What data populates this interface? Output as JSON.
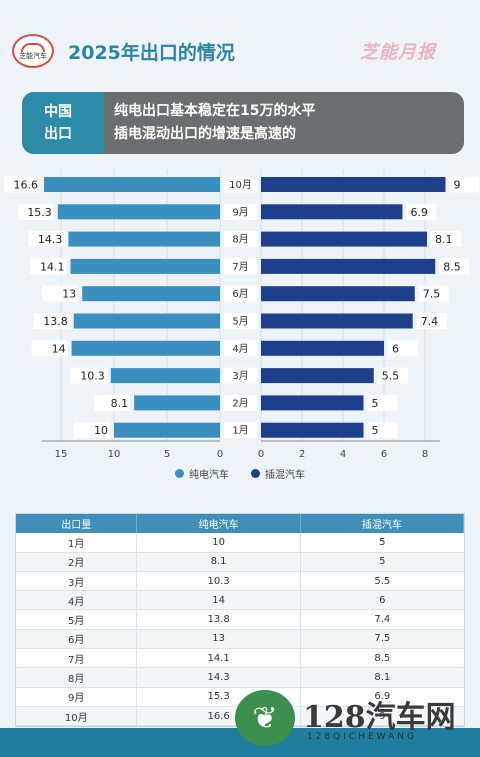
{
  "header": {
    "logo_text": "芝能汽车",
    "title": "2025年出口的情况",
    "brand": "芝能月报"
  },
  "banner": {
    "tag_line1": "中国",
    "tag_line2": "出口",
    "line1": "纯电出口基本稳定在15万的水平",
    "line2": "插电混动出口的增速是高速的"
  },
  "colors": {
    "bev": "#3a8fc0",
    "phev": "#1e3f8c",
    "accent": "#2c8ba8"
  },
  "chart_data": {
    "type": "bar",
    "orientation": "horizontal-butterfly",
    "categories": [
      "1月",
      "2月",
      "3月",
      "4月",
      "5月",
      "6月",
      "7月",
      "8月",
      "9月",
      "10月"
    ],
    "series": [
      {
        "name": "纯电汽车",
        "values": [
          10,
          8.1,
          10.3,
          14,
          13.8,
          13,
          14.1,
          14.3,
          15.3,
          16.6
        ],
        "xlim": [
          0,
          17
        ]
      },
      {
        "name": "插混汽车",
        "values": [
          5,
          5,
          5.5,
          6,
          7.4,
          7.5,
          8.5,
          8.1,
          6.9,
          9
        ],
        "xlim": [
          0,
          9
        ]
      }
    ],
    "left_ticks": [
      "15",
      "10",
      "5",
      "0"
    ],
    "right_ticks": [
      "0",
      "2",
      "4",
      "6",
      "8"
    ],
    "legend": [
      "纯电汽车",
      "插混汽车"
    ]
  },
  "table": {
    "headers": [
      "出口量",
      "纯电汽车",
      "插混汽车"
    ],
    "rows": [
      [
        "1月",
        "10",
        "5"
      ],
      [
        "2月",
        "8.1",
        "5"
      ],
      [
        "3月",
        "10.3",
        "5.5"
      ],
      [
        "4月",
        "14",
        "6"
      ],
      [
        "5月",
        "13.8",
        "7.4"
      ],
      [
        "6月",
        "13",
        "7.5"
      ],
      [
        "7月",
        "14.1",
        "8.5"
      ],
      [
        "8月",
        "14.3",
        "8.1"
      ],
      [
        "9月",
        "15.3",
        "6.9"
      ],
      [
        "10月",
        "16.6",
        "9"
      ]
    ]
  },
  "watermark": {
    "title": "128汽车网",
    "subtitle": "128QICHEWANG"
  }
}
